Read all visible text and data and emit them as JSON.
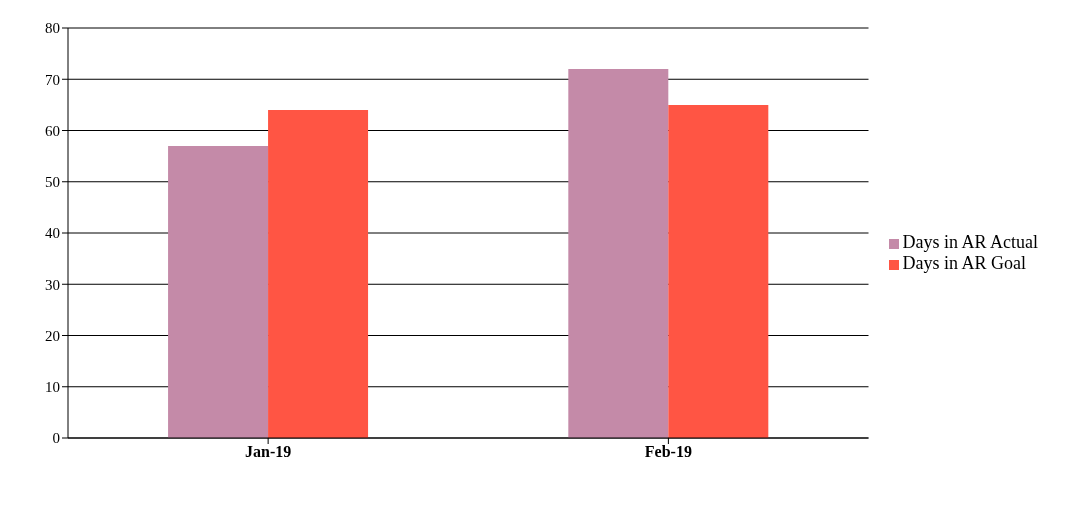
{
  "chart_data": {
    "type": "bar",
    "categories": [
      "Jan-19",
      "Feb-19"
    ],
    "series": [
      {
        "name": "Days in AR Actual",
        "color": "#c48aa8",
        "values": [
          57,
          72
        ]
      },
      {
        "name": "Days in AR Goal",
        "color": "#ff5544",
        "values": [
          64,
          65
        ]
      }
    ],
    "ylim": [
      0,
      80
    ],
    "yticks": [
      0,
      10,
      20,
      30,
      40,
      50,
      60,
      70,
      80
    ],
    "grid": "y",
    "legend": "right"
  }
}
